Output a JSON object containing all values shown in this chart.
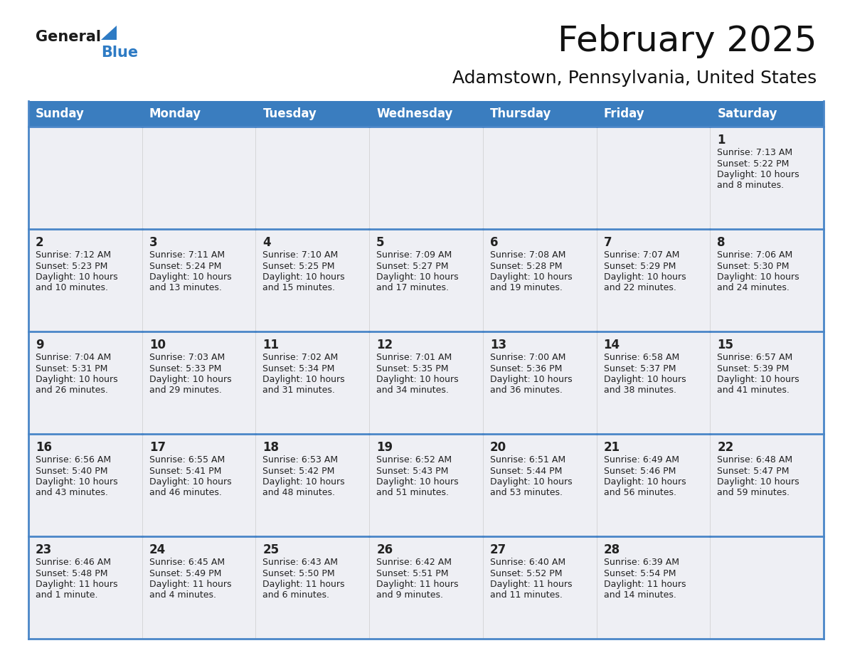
{
  "title": "February 2025",
  "subtitle": "Adamstown, Pennsylvania, United States",
  "header_bg": "#3a7dbf",
  "header_text_color": "#ffffff",
  "cell_bg": "#eeeff4",
  "border_color": "#4a86c8",
  "text_color": "#222222",
  "day_number_color": "#222222",
  "days_of_week": [
    "Sunday",
    "Monday",
    "Tuesday",
    "Wednesday",
    "Thursday",
    "Friday",
    "Saturday"
  ],
  "weeks": [
    [
      {
        "day": "",
        "info": ""
      },
      {
        "day": "",
        "info": ""
      },
      {
        "day": "",
        "info": ""
      },
      {
        "day": "",
        "info": ""
      },
      {
        "day": "",
        "info": ""
      },
      {
        "day": "",
        "info": ""
      },
      {
        "day": "1",
        "info": "Sunrise: 7:13 AM\nSunset: 5:22 PM\nDaylight: 10 hours\nand 8 minutes."
      }
    ],
    [
      {
        "day": "2",
        "info": "Sunrise: 7:12 AM\nSunset: 5:23 PM\nDaylight: 10 hours\nand 10 minutes."
      },
      {
        "day": "3",
        "info": "Sunrise: 7:11 AM\nSunset: 5:24 PM\nDaylight: 10 hours\nand 13 minutes."
      },
      {
        "day": "4",
        "info": "Sunrise: 7:10 AM\nSunset: 5:25 PM\nDaylight: 10 hours\nand 15 minutes."
      },
      {
        "day": "5",
        "info": "Sunrise: 7:09 AM\nSunset: 5:27 PM\nDaylight: 10 hours\nand 17 minutes."
      },
      {
        "day": "6",
        "info": "Sunrise: 7:08 AM\nSunset: 5:28 PM\nDaylight: 10 hours\nand 19 minutes."
      },
      {
        "day": "7",
        "info": "Sunrise: 7:07 AM\nSunset: 5:29 PM\nDaylight: 10 hours\nand 22 minutes."
      },
      {
        "day": "8",
        "info": "Sunrise: 7:06 AM\nSunset: 5:30 PM\nDaylight: 10 hours\nand 24 minutes."
      }
    ],
    [
      {
        "day": "9",
        "info": "Sunrise: 7:04 AM\nSunset: 5:31 PM\nDaylight: 10 hours\nand 26 minutes."
      },
      {
        "day": "10",
        "info": "Sunrise: 7:03 AM\nSunset: 5:33 PM\nDaylight: 10 hours\nand 29 minutes."
      },
      {
        "day": "11",
        "info": "Sunrise: 7:02 AM\nSunset: 5:34 PM\nDaylight: 10 hours\nand 31 minutes."
      },
      {
        "day": "12",
        "info": "Sunrise: 7:01 AM\nSunset: 5:35 PM\nDaylight: 10 hours\nand 34 minutes."
      },
      {
        "day": "13",
        "info": "Sunrise: 7:00 AM\nSunset: 5:36 PM\nDaylight: 10 hours\nand 36 minutes."
      },
      {
        "day": "14",
        "info": "Sunrise: 6:58 AM\nSunset: 5:37 PM\nDaylight: 10 hours\nand 38 minutes."
      },
      {
        "day": "15",
        "info": "Sunrise: 6:57 AM\nSunset: 5:39 PM\nDaylight: 10 hours\nand 41 minutes."
      }
    ],
    [
      {
        "day": "16",
        "info": "Sunrise: 6:56 AM\nSunset: 5:40 PM\nDaylight: 10 hours\nand 43 minutes."
      },
      {
        "day": "17",
        "info": "Sunrise: 6:55 AM\nSunset: 5:41 PM\nDaylight: 10 hours\nand 46 minutes."
      },
      {
        "day": "18",
        "info": "Sunrise: 6:53 AM\nSunset: 5:42 PM\nDaylight: 10 hours\nand 48 minutes."
      },
      {
        "day": "19",
        "info": "Sunrise: 6:52 AM\nSunset: 5:43 PM\nDaylight: 10 hours\nand 51 minutes."
      },
      {
        "day": "20",
        "info": "Sunrise: 6:51 AM\nSunset: 5:44 PM\nDaylight: 10 hours\nand 53 minutes."
      },
      {
        "day": "21",
        "info": "Sunrise: 6:49 AM\nSunset: 5:46 PM\nDaylight: 10 hours\nand 56 minutes."
      },
      {
        "day": "22",
        "info": "Sunrise: 6:48 AM\nSunset: 5:47 PM\nDaylight: 10 hours\nand 59 minutes."
      }
    ],
    [
      {
        "day": "23",
        "info": "Sunrise: 6:46 AM\nSunset: 5:48 PM\nDaylight: 11 hours\nand 1 minute."
      },
      {
        "day": "24",
        "info": "Sunrise: 6:45 AM\nSunset: 5:49 PM\nDaylight: 11 hours\nand 4 minutes."
      },
      {
        "day": "25",
        "info": "Sunrise: 6:43 AM\nSunset: 5:50 PM\nDaylight: 11 hours\nand 6 minutes."
      },
      {
        "day": "26",
        "info": "Sunrise: 6:42 AM\nSunset: 5:51 PM\nDaylight: 11 hours\nand 9 minutes."
      },
      {
        "day": "27",
        "info": "Sunrise: 6:40 AM\nSunset: 5:52 PM\nDaylight: 11 hours\nand 11 minutes."
      },
      {
        "day": "28",
        "info": "Sunrise: 6:39 AM\nSunset: 5:54 PM\nDaylight: 11 hours\nand 14 minutes."
      },
      {
        "day": "",
        "info": ""
      }
    ]
  ],
  "logo_color_general": "#1a1a1a",
  "logo_color_blue": "#2e7bc4",
  "logo_triangle_color": "#2e7bc4",
  "title_fontsize": 36,
  "subtitle_fontsize": 18,
  "header_fontsize": 12,
  "day_num_fontsize": 12,
  "info_fontsize": 9
}
